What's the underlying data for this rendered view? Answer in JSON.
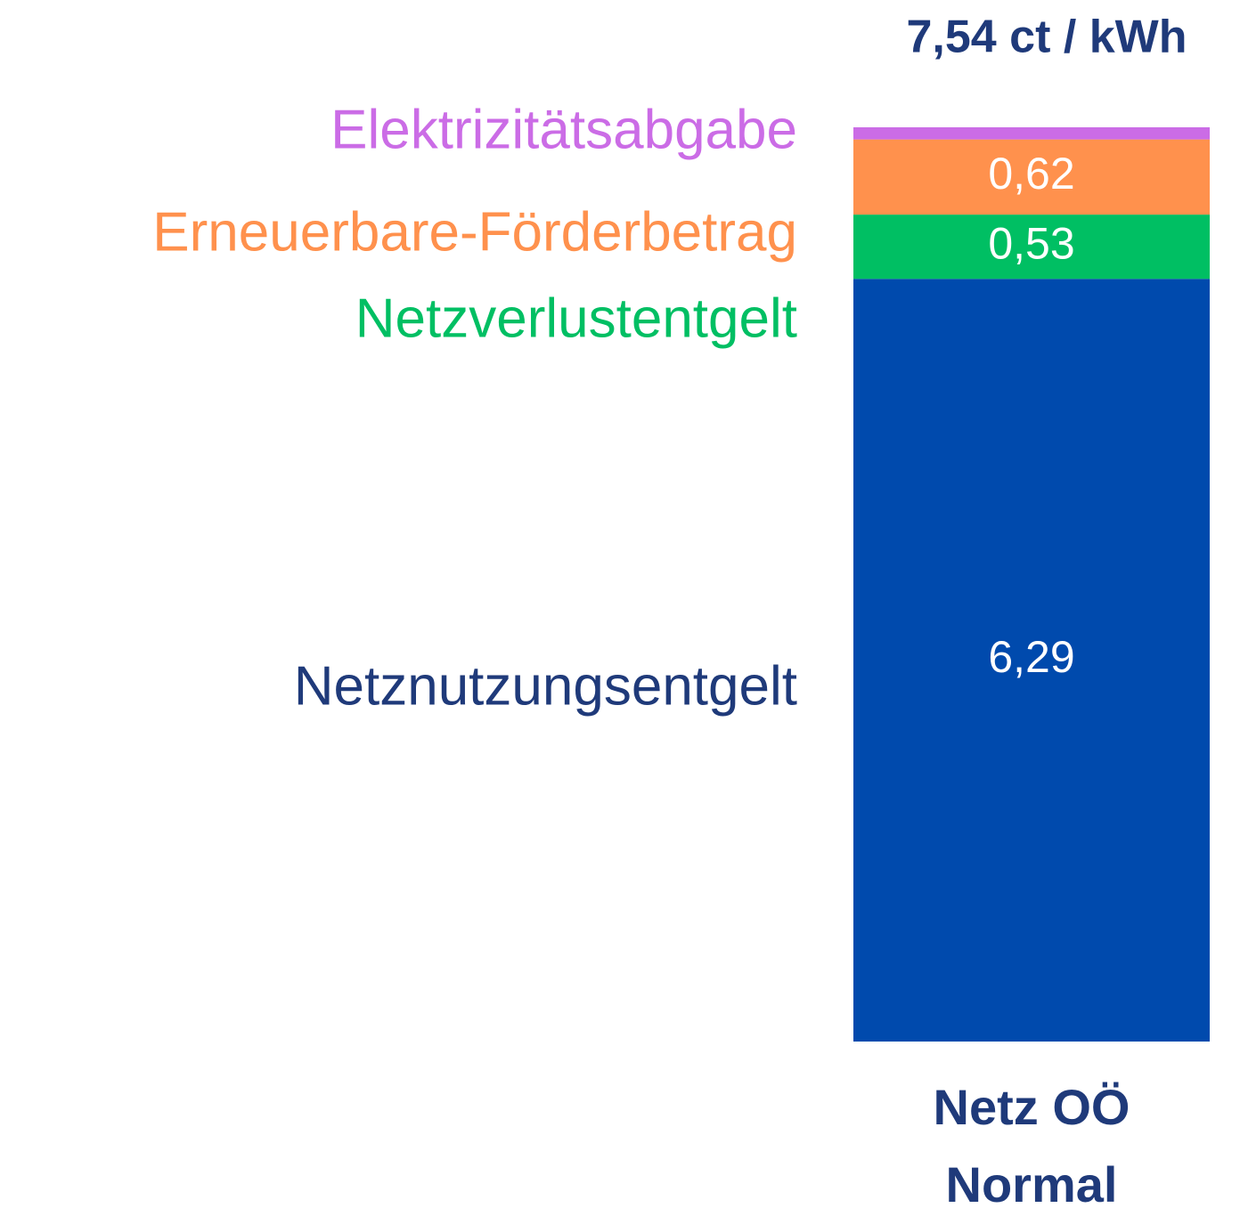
{
  "chart_data": {
    "type": "stacked_bar",
    "annotation": "7,54 ct / kWh",
    "categories": [
      "Netz OÖ Normal"
    ],
    "series": [
      {
        "name": "Netznutzungsentgelt",
        "color": "#004aad",
        "values": [
          6.29
        ],
        "value_labels": [
          "6,29"
        ]
      },
      {
        "name": "Netzverlustentgelt",
        "color": "#00bf63",
        "values": [
          0.53
        ],
        "value_labels": [
          "0,53"
        ]
      },
      {
        "name": "Erneuerbare-Förderbetrag",
        "color": "#ff914d",
        "values": [
          0.62
        ],
        "value_labels": [
          "0,62"
        ]
      },
      {
        "name": "Elektrizitätsabgabe",
        "color": "#cb6ce6",
        "values": [
          0.1
        ],
        "value_labels": [
          null
        ]
      }
    ]
  }
}
